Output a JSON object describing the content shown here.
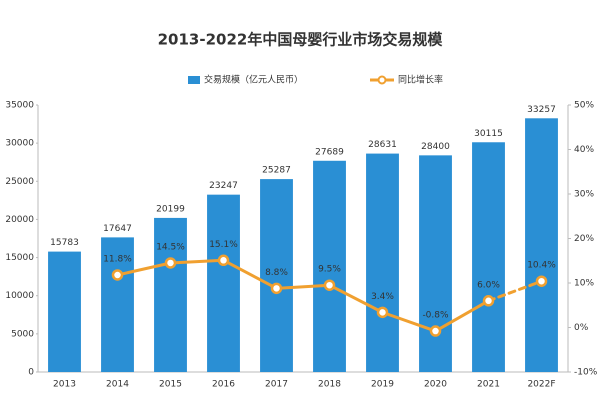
{
  "chart_data": {
    "type": "bar-line",
    "title": "2013-2022年中国母婴行业市场交易规模",
    "categories": [
      "2013",
      "2014",
      "2015",
      "2016",
      "2017",
      "2018",
      "2019",
      "2020",
      "2021",
      "2022F"
    ],
    "series": [
      {
        "name": "交易规模（亿元人民币）",
        "color": "#2a8fd4",
        "type": "bar",
        "values": [
          15783,
          17647,
          20199,
          23247,
          25287,
          27689,
          28631,
          28400,
          30115,
          33257
        ]
      },
      {
        "name": "同比增长率",
        "color": "#f0a030",
        "type": "line",
        "axis": "y2",
        "dashed_last_segment": true,
        "values": [
          null,
          11.8,
          14.5,
          15.1,
          8.8,
          9.5,
          3.4,
          -0.8,
          6.0,
          10.4
        ],
        "value_labels": [
          null,
          "11.8%",
          "14.5%",
          "15.1%",
          "8.8%",
          "9.5%",
          "3.4%",
          "-0.8%",
          "6.0%",
          "10.4%"
        ]
      }
    ],
    "ylim": [
      0,
      35000
    ],
    "yticks": [
      0,
      5000,
      10000,
      15000,
      20000,
      25000,
      30000,
      35000
    ],
    "y2lim": [
      -10,
      50
    ],
    "y2ticks": [
      {
        "value": -10,
        "label": "-10%"
      },
      {
        "value": 0,
        "label": "0%"
      },
      {
        "value": 10,
        "label": "10%"
      },
      {
        "value": 20,
        "label": "20%"
      },
      {
        "value": 30,
        "label": "30%"
      },
      {
        "value": 40,
        "label": "40%"
      },
      {
        "value": 50,
        "label": "50%"
      }
    ]
  }
}
